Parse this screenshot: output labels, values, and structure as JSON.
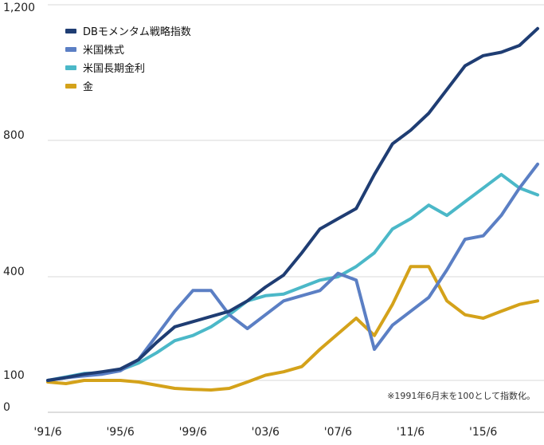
{
  "chart_data": {
    "type": "line",
    "x": [
      "'91/6",
      "'92/6",
      "'93/6",
      "'94/6",
      "'95/6",
      "'96/6",
      "'97/6",
      "'98/6",
      "'99/6",
      "'00/6",
      "'01/6",
      "'02/6",
      "'03/6",
      "'04/6",
      "'05/6",
      "'06/6",
      "'07/6",
      "'08/6",
      "'09/6",
      "'10/6",
      "'11/6",
      "'12/6",
      "'13/6",
      "'14/6",
      "'15/6",
      "'16/6",
      "'17/6",
      "'18/6"
    ],
    "x_tick_labels": [
      "'91/6",
      "'95/6",
      "'99/6",
      "'03/6",
      "'07/6",
      "'11/6",
      "'15/6"
    ],
    "y_tick_labels": [
      "0",
      "100",
      "400",
      "800",
      "1,200"
    ],
    "y_ticks": [
      0,
      100,
      400,
      800,
      1200
    ],
    "ylim": [
      0,
      1200
    ],
    "grid": true,
    "legend_position": "top-left",
    "note": "※1991年6月末を100として指数化。",
    "series": [
      {
        "name": "DBモメンタム戦略指数",
        "color": "#1f3d73",
        "values": [
          100,
          108,
          118,
          125,
          133,
          160,
          210,
          255,
          270,
          285,
          300,
          330,
          370,
          405,
          470,
          540,
          570,
          600,
          700,
          790,
          830,
          880,
          950,
          1020,
          1050,
          1060,
          1080,
          1130
        ]
      },
      {
        "name": "米国株式",
        "color": "#5b7fc4",
        "values": [
          100,
          108,
          113,
          118,
          128,
          160,
          230,
          300,
          360,
          360,
          290,
          250,
          290,
          330,
          345,
          360,
          410,
          390,
          190,
          260,
          300,
          340,
          420,
          510,
          520,
          580,
          660,
          730
        ]
      },
      {
        "name": "米国長期金利",
        "color": "#4bb8c8",
        "values": [
          100,
          110,
          120,
          122,
          130,
          150,
          180,
          215,
          230,
          255,
          290,
          330,
          345,
          350,
          370,
          390,
          400,
          430,
          470,
          540,
          570,
          610,
          580,
          620,
          660,
          700,
          660,
          640
        ]
      },
      {
        "name": "金",
        "color": "#d4a21a",
        "values": [
          95,
          90,
          100,
          100,
          100,
          95,
          85,
          75,
          72,
          70,
          75,
          95,
          115,
          125,
          140,
          190,
          235,
          280,
          230,
          320,
          430,
          430,
          330,
          290,
          280,
          300,
          320,
          330
        ]
      }
    ]
  }
}
